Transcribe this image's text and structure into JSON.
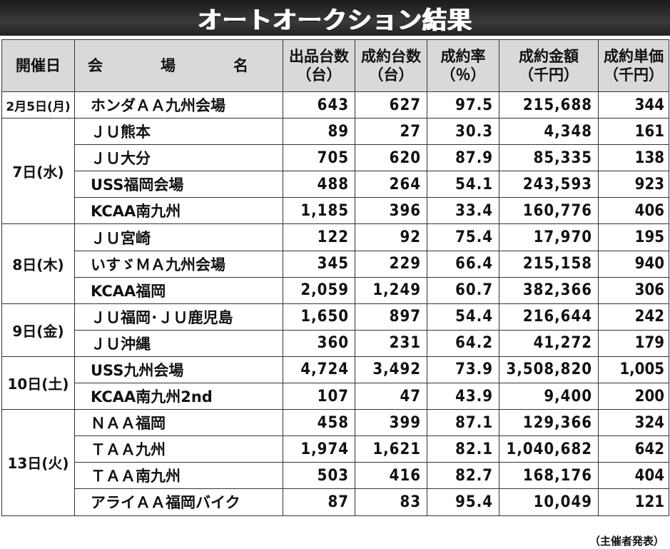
{
  "title": "オートオークション結果",
  "headers": {
    "date": "開催日",
    "venue": "会　場　名",
    "listed": "出品台数",
    "listed_unit": "（台）",
    "sold": "成約台数",
    "sold_unit": "（台）",
    "rate": "成約率",
    "rate_unit": "（％）",
    "amount": "成約金額",
    "amount_unit": "（千円）",
    "unit_price": "成約単価",
    "unit_price_unit": "（千円）"
  },
  "groups": [
    {
      "date": "2月5日(月)",
      "rows": [
        {
          "venue": "ホンダＡＡ九州会場",
          "listed": "643",
          "sold": "627",
          "rate": "97.5",
          "amount": "215,688",
          "unit": "344"
        }
      ]
    },
    {
      "date": "7日(水)",
      "rows": [
        {
          "venue": "ＪＵ熊本",
          "listed": "89",
          "sold": "27",
          "rate": "30.3",
          "amount": "4,348",
          "unit": "161"
        },
        {
          "venue": "ＪＵ大分",
          "listed": "705",
          "sold": "620",
          "rate": "87.9",
          "amount": "85,335",
          "unit": "138"
        },
        {
          "venue": "USS福岡会場",
          "listed": "488",
          "sold": "264",
          "rate": "54.1",
          "amount": "243,593",
          "unit": "923"
        },
        {
          "venue": "KCAA南九州",
          "listed": "1,185",
          "sold": "396",
          "rate": "33.4",
          "amount": "160,776",
          "unit": "406"
        }
      ]
    },
    {
      "date": "8日(木)",
      "rows": [
        {
          "venue": "ＪＵ宮崎",
          "listed": "122",
          "sold": "92",
          "rate": "75.4",
          "amount": "17,970",
          "unit": "195"
        },
        {
          "venue": "いすゞＭＡ九州会場",
          "listed": "345",
          "sold": "229",
          "rate": "66.4",
          "amount": "215,158",
          "unit": "940"
        },
        {
          "venue": "KCAA福岡",
          "listed": "2,059",
          "sold": "1,249",
          "rate": "60.7",
          "amount": "382,366",
          "unit": "306"
        }
      ]
    },
    {
      "date": "9日(金)",
      "rows": [
        {
          "venue": "ＪＵ福岡･ＪＵ鹿児島",
          "listed": "1,650",
          "sold": "897",
          "rate": "54.4",
          "amount": "216,644",
          "unit": "242"
        },
        {
          "venue": "ＪＵ沖縄",
          "listed": "360",
          "sold": "231",
          "rate": "64.2",
          "amount": "41,272",
          "unit": "179"
        }
      ]
    },
    {
      "date": "10日(土)",
      "rows": [
        {
          "venue": "USS九州会場",
          "listed": "4,724",
          "sold": "3,492",
          "rate": "73.9",
          "amount": "3,508,820",
          "unit": "1,005"
        },
        {
          "venue": "KCAA南九州2nd",
          "listed": "107",
          "sold": "47",
          "rate": "43.9",
          "amount": "9,400",
          "unit": "200"
        }
      ]
    },
    {
      "date": "13日(火)",
      "rows": [
        {
          "venue": "ＮＡＡ福岡",
          "listed": "458",
          "sold": "399",
          "rate": "87.1",
          "amount": "129,366",
          "unit": "324"
        },
        {
          "venue": "ＴＡＡ九州",
          "listed": "1,974",
          "sold": "1,621",
          "rate": "82.1",
          "amount": "1,040,682",
          "unit": "642"
        },
        {
          "venue": "ＴＡＡ南九州",
          "listed": "503",
          "sold": "416",
          "rate": "82.7",
          "amount": "168,176",
          "unit": "404"
        },
        {
          "venue": "アライＡＡ福岡バイク",
          "listed": "87",
          "sold": "83",
          "rate": "95.4",
          "amount": "10,049",
          "unit": "121"
        }
      ]
    }
  ],
  "footer": "（主催者発表）"
}
